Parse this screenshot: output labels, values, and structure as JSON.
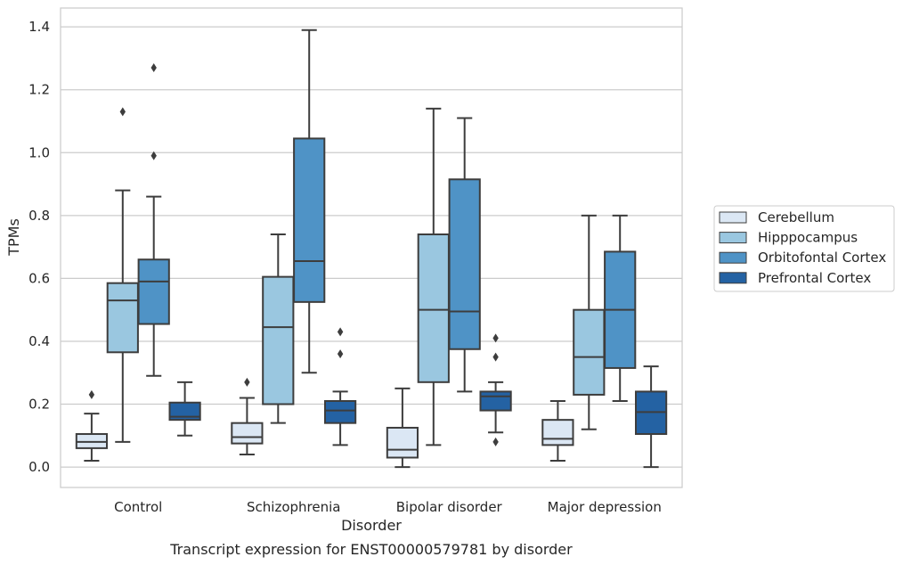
{
  "chart_data": {
    "type": "boxplot",
    "title": "",
    "caption": "Transcript expression for ENST00000579781 by disorder",
    "xlabel": "Disorder",
    "ylabel": "TPMs",
    "ylim": [
      -0.065,
      1.46
    ],
    "yticks": [
      0.0,
      0.2,
      0.4,
      0.6,
      0.8,
      1.0,
      1.2,
      1.4
    ],
    "ytick_labels": [
      "0.0",
      "0.2",
      "0.4",
      "0.6",
      "0.8",
      "1.0",
      "1.2",
      "1.4"
    ],
    "grid": "horizontal",
    "legend_position": "right",
    "categories": [
      "Control",
      "Schizophrenia",
      "Bipolar disorder",
      "Major depression"
    ],
    "series": [
      {
        "name": "Cerebellum",
        "color": "#dbe7f4",
        "boxes": [
          {
            "whisker_low": 0.02,
            "q1": 0.06,
            "median": 0.08,
            "q3": 0.105,
            "whisker_high": 0.17,
            "outliers": [
              0.23
            ]
          },
          {
            "whisker_low": 0.04,
            "q1": 0.075,
            "median": 0.095,
            "q3": 0.14,
            "whisker_high": 0.22,
            "outliers": [
              0.27
            ]
          },
          {
            "whisker_low": 0.0,
            "q1": 0.03,
            "median": 0.055,
            "q3": 0.125,
            "whisker_high": 0.25,
            "outliers": []
          },
          {
            "whisker_low": 0.02,
            "q1": 0.07,
            "median": 0.09,
            "q3": 0.15,
            "whisker_high": 0.21,
            "outliers": []
          }
        ]
      },
      {
        "name": "Hipppocampus",
        "color": "#9ac7e0",
        "boxes": [
          {
            "whisker_low": 0.08,
            "q1": 0.365,
            "median": 0.53,
            "q3": 0.585,
            "whisker_high": 0.88,
            "outliers": [
              1.13
            ]
          },
          {
            "whisker_low": 0.14,
            "q1": 0.2,
            "median": 0.445,
            "q3": 0.605,
            "whisker_high": 0.74,
            "outliers": []
          },
          {
            "whisker_low": 0.07,
            "q1": 0.27,
            "median": 0.5,
            "q3": 0.74,
            "whisker_high": 1.14,
            "outliers": []
          },
          {
            "whisker_low": 0.12,
            "q1": 0.23,
            "median": 0.35,
            "q3": 0.5,
            "whisker_high": 0.8,
            "outliers": []
          }
        ]
      },
      {
        "name": "Orbitofontal Cortex",
        "color": "#4f93c6",
        "boxes": [
          {
            "whisker_low": 0.29,
            "q1": 0.455,
            "median": 0.59,
            "q3": 0.66,
            "whisker_high": 0.86,
            "outliers": [
              0.99,
              1.27
            ]
          },
          {
            "whisker_low": 0.3,
            "q1": 0.525,
            "median": 0.655,
            "q3": 1.045,
            "whisker_high": 1.39,
            "outliers": []
          },
          {
            "whisker_low": 0.24,
            "q1": 0.375,
            "median": 0.495,
            "q3": 0.915,
            "whisker_high": 1.11,
            "outliers": []
          },
          {
            "whisker_low": 0.21,
            "q1": 0.315,
            "median": 0.5,
            "q3": 0.685,
            "whisker_high": 0.8,
            "outliers": []
          }
        ]
      },
      {
        "name": "Prefrontal Cortex",
        "color": "#2462a3",
        "boxes": [
          {
            "whisker_low": 0.1,
            "q1": 0.15,
            "median": 0.16,
            "q3": 0.205,
            "whisker_high": 0.27,
            "outliers": []
          },
          {
            "whisker_low": 0.07,
            "q1": 0.14,
            "median": 0.18,
            "q3": 0.21,
            "whisker_high": 0.24,
            "outliers": [
              0.36,
              0.43
            ]
          },
          {
            "whisker_low": 0.11,
            "q1": 0.18,
            "median": 0.225,
            "q3": 0.24,
            "whisker_high": 0.27,
            "outliers": [
              0.08,
              0.35,
              0.41
            ]
          },
          {
            "whisker_low": 0.0,
            "q1": 0.105,
            "median": 0.175,
            "q3": 0.24,
            "whisker_high": 0.32,
            "outliers": []
          }
        ]
      }
    ]
  }
}
